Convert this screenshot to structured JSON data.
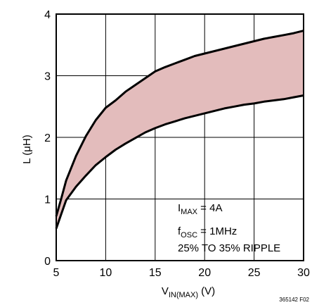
{
  "chart_data": {
    "type": "area",
    "xlabel": {
      "main": "V",
      "sub": "IN(MAX)",
      "unit": " (V)"
    },
    "ylabel": "L (μH)",
    "xlim": [
      5,
      30
    ],
    "ylim": [
      0,
      4
    ],
    "xticks": [
      5,
      10,
      15,
      20,
      25,
      30
    ],
    "yticks": [
      0,
      1,
      2,
      3,
      4
    ],
    "grid": true,
    "band_color": "#e3bcbc",
    "line_color": "#000000",
    "series": [
      {
        "x": [
          5,
          5.5,
          6,
          7,
          8,
          9,
          10,
          11,
          12,
          13,
          14,
          15,
          16,
          17,
          18,
          19,
          20,
          21,
          22,
          23,
          24,
          25,
          26,
          27,
          28,
          29,
          30
        ],
        "values": [
          0.72,
          1.0,
          1.3,
          1.7,
          2.02,
          2.28,
          2.48,
          2.6,
          2.74,
          2.85,
          2.96,
          3.07,
          3.14,
          3.2,
          3.26,
          3.32,
          3.36,
          3.4,
          3.44,
          3.48,
          3.52,
          3.56,
          3.6,
          3.63,
          3.66,
          3.69,
          3.73
        ]
      },
      {
        "x": [
          5,
          5.5,
          6,
          7,
          8,
          9,
          10,
          11,
          12,
          13,
          14,
          15,
          16,
          17,
          18,
          19,
          20,
          21,
          22,
          23,
          24,
          25,
          26,
          27,
          28,
          29,
          30
        ],
        "values": [
          0.52,
          0.75,
          0.98,
          1.2,
          1.38,
          1.55,
          1.68,
          1.8,
          1.9,
          1.99,
          2.08,
          2.15,
          2.21,
          2.26,
          2.31,
          2.35,
          2.39,
          2.43,
          2.47,
          2.5,
          2.53,
          2.55,
          2.58,
          2.6,
          2.62,
          2.65,
          2.68
        ]
      }
    ],
    "annotations": [
      "I",
      "MAX",
      " = 4A",
      "f",
      "OSC",
      " = 1MHz",
      "25% TO 35% RIPPLE"
    ],
    "figure_id": "365142 F02"
  }
}
